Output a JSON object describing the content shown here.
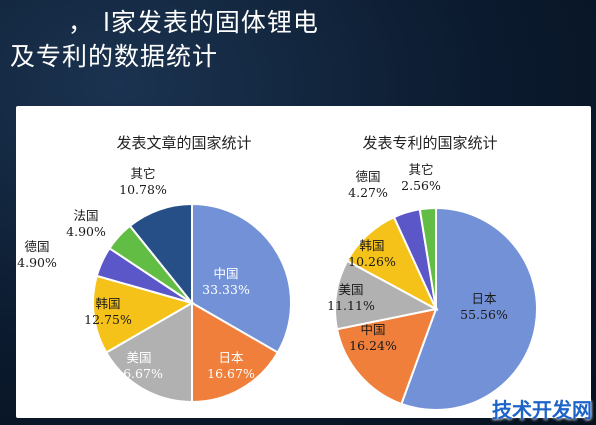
{
  "headline": {
    "line1": "，  l家发表的固体锂电",
    "line2": "及专利的数据统计"
  },
  "watermark": "技术开发网",
  "chart_data": [
    {
      "type": "pie",
      "title": "发表文章的国家统计",
      "slices": [
        {
          "name": "中国",
          "value": 33.33,
          "label": "33.33%",
          "color": "#7391d6"
        },
        {
          "name": "日本",
          "value": 16.67,
          "label": "16.67%",
          "color": "#f07f3c"
        },
        {
          "name": "美国",
          "value": 16.67,
          "label": "16.67%",
          "color": "#b1b1b1"
        },
        {
          "name": "韩国",
          "value": 12.75,
          "label": "12.75%",
          "color": "#f5c21a"
        },
        {
          "name": "德国",
          "value": 4.9,
          "label": "4.90%",
          "color": "#5b57c9"
        },
        {
          "name": "法国",
          "value": 4.9,
          "label": "4.90%",
          "color": "#62bd44"
        },
        {
          "name": "其它",
          "value": 10.78,
          "label": "10.78%",
          "color": "#274f87"
        }
      ]
    },
    {
      "type": "pie",
      "title": "发表专利的国家统计",
      "slices": [
        {
          "name": "日本",
          "value": 55.56,
          "label": "55.56%",
          "color": "#7391d6"
        },
        {
          "name": "中国",
          "value": 16.24,
          "label": "16.24%",
          "color": "#f07f3c"
        },
        {
          "name": "美国",
          "value": 11.11,
          "label": "11.11%",
          "color": "#b1b1b1"
        },
        {
          "name": "韩国",
          "value": 10.26,
          "label": "10.26%",
          "color": "#f5c21a"
        },
        {
          "name": "德国",
          "value": 4.27,
          "label": "4.27%",
          "color": "#5b57c9"
        },
        {
          "name": "其它",
          "value": 2.56,
          "label": "2.56%",
          "color": "#62bd44"
        }
      ]
    }
  ]
}
